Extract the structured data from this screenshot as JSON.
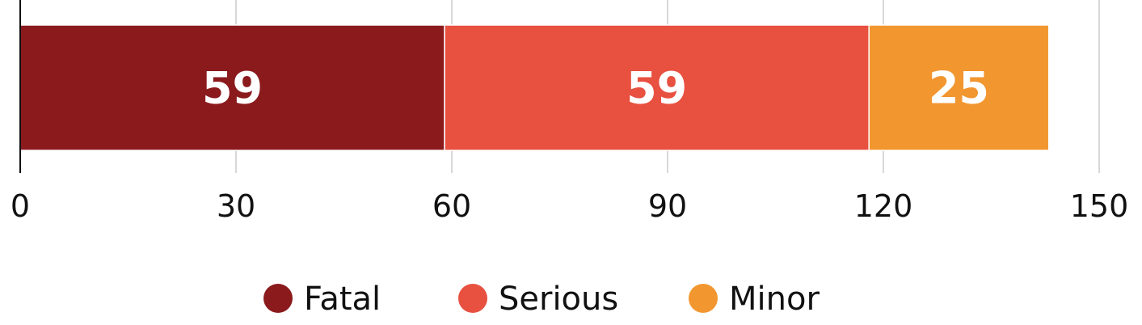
{
  "chart_data": {
    "type": "bar",
    "orientation": "horizontal",
    "stacked": true,
    "categories": [
      ""
    ],
    "series": [
      {
        "name": "Fatal",
        "values": [
          59
        ],
        "color": "#8b1a1d"
      },
      {
        "name": "Serious",
        "values": [
          59
        ],
        "color": "#e85040"
      },
      {
        "name": "Minor",
        "values": [
          25
        ],
        "color": "#f2962f"
      }
    ],
    "x_ticks": [
      "0",
      "30",
      "60",
      "90",
      "120",
      "150"
    ],
    "x_tick_values": [
      0,
      30,
      60,
      90,
      120,
      150
    ],
    "xlim": [
      0,
      150
    ],
    "grid": true,
    "legend_position": "bottom-center",
    "data_labels": [
      "59",
      "59",
      "25"
    ]
  }
}
